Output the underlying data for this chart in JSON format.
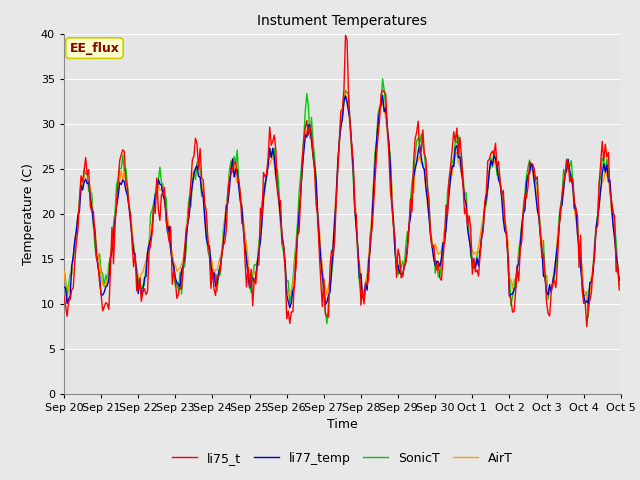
{
  "title": "Instument Temperatures",
  "xlabel": "Time",
  "ylabel": "Temperature (C)",
  "ylim": [
    0,
    40
  ],
  "yticks": [
    0,
    5,
    10,
    15,
    20,
    25,
    30,
    35,
    40
  ],
  "bg_color": "#e5e5e5",
  "fig_color": "#e8e8e8",
  "annotation_text": "EE_flux",
  "annotation_color": "#8b0000",
  "annotation_bg": "#ffffcc",
  "annotation_edge": "#cccc00",
  "series_colors": {
    "li75_t": "#ff0000",
    "li77_temp": "#0000cc",
    "SonicT": "#00cc00",
    "AirT": "#ff9900"
  },
  "x_tick_labels": [
    "Sep 20",
    "Sep 21",
    "Sep 22",
    "Sep 23",
    "Sep 24",
    "Sep 25",
    "Sep 26",
    "Sep 27",
    "Sep 28",
    "Sep 29",
    "Sep 30",
    "Oct 1",
    "Oct 2",
    "Oct 3",
    "Oct 4",
    "Oct 5"
  ],
  "linewidth": 1.0,
  "title_fontsize": 10,
  "label_fontsize": 9,
  "tick_fontsize": 8,
  "legend_fontsize": 9
}
